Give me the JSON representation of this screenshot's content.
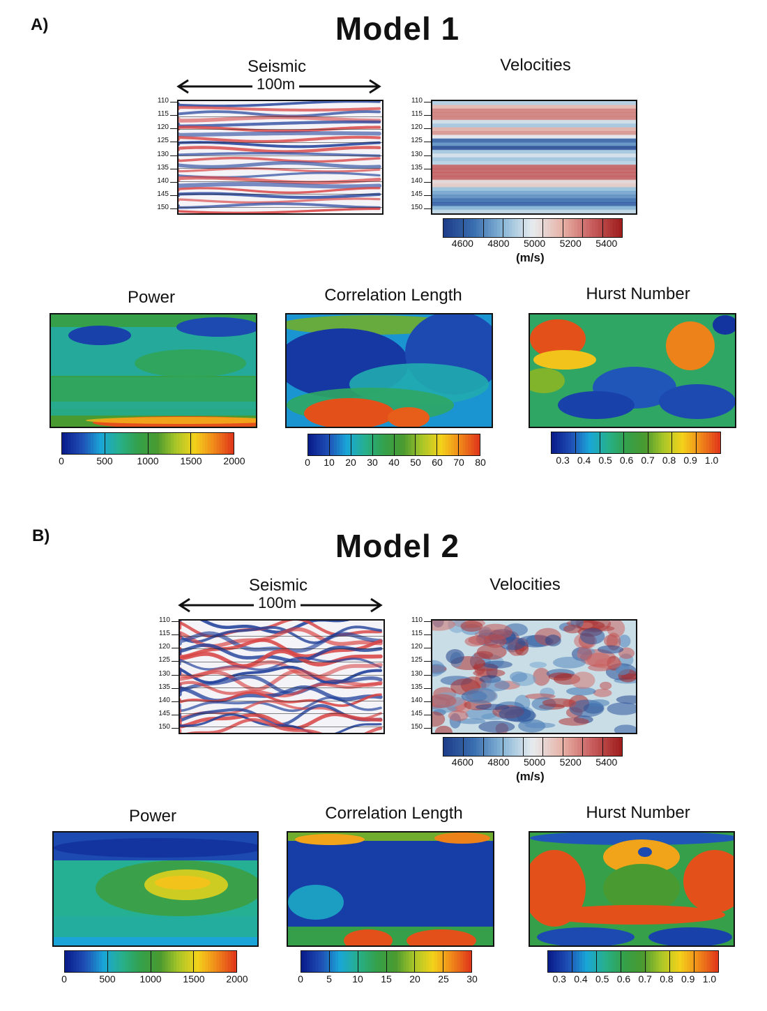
{
  "panels": [
    {
      "letter": "A)",
      "title": "Model 1",
      "seismic": {
        "title": "Seismic",
        "scale_label": "100m",
        "depth_ticks": [
          "110",
          "115",
          "120",
          "125",
          "130",
          "135",
          "140",
          "145",
          "150"
        ]
      },
      "velocities": {
        "title": "Velocities",
        "depth_ticks": [
          "110",
          "115",
          "120",
          "125",
          "130",
          "135",
          "140",
          "145",
          "150"
        ],
        "colorbar_labels": [
          "4600",
          "4800",
          "5000",
          "5200",
          "5400"
        ],
        "unit": "(m/s)"
      },
      "power": {
        "title": "Power",
        "colorbar_labels": [
          "0",
          "500",
          "1000",
          "1500",
          "2000"
        ]
      },
      "correlation": {
        "title": "Correlation Length",
        "colorbar_labels": [
          "0",
          "10",
          "20",
          "30",
          "40",
          "50",
          "60",
          "70",
          "80"
        ]
      },
      "hurst": {
        "title": "Hurst Number",
        "colorbar_labels": [
          "0.3",
          "0.4",
          "0.5",
          "0.6",
          "0.7",
          "0.8",
          "0.9",
          "1.0"
        ]
      }
    },
    {
      "letter": "B)",
      "title": "Model 2",
      "seismic": {
        "title": "Seismic",
        "scale_label": "100m",
        "depth_ticks": [
          "110",
          "115",
          "120",
          "125",
          "130",
          "135",
          "140",
          "145",
          "150"
        ]
      },
      "velocities": {
        "title": "Velocities",
        "depth_ticks": [
          "110",
          "115",
          "120",
          "125",
          "130",
          "135",
          "140",
          "145",
          "150"
        ],
        "colorbar_labels": [
          "4600",
          "4800",
          "5000",
          "5200",
          "5400"
        ],
        "unit": "(m/s)"
      },
      "power": {
        "title": "Power",
        "colorbar_labels": [
          "0",
          "500",
          "1000",
          "1500",
          "2000"
        ]
      },
      "correlation": {
        "title": "Correlation Length",
        "colorbar_labels": [
          "0",
          "5",
          "10",
          "15",
          "20",
          "25",
          "30"
        ]
      },
      "hurst": {
        "title": "Hurst Number",
        "colorbar_labels": [
          "0.3",
          "0.4",
          "0.5",
          "0.6",
          "0.7",
          "0.8",
          "0.9",
          "1.0"
        ]
      }
    }
  ],
  "colors": {
    "jet": [
      "#0a1e8c",
      "#1f4fb5",
      "#1aa6d8",
      "#27b08a",
      "#34a04a",
      "#4a9a30",
      "#a9c628",
      "#f3d21b",
      "#f08a1a",
      "#e03a1a"
    ],
    "seismic_pos": "#d94545",
    "seismic_neg": "#1f3f9a",
    "vel_scale": [
      "#1f3f8a",
      "#3a6fb0",
      "#8ab8d8",
      "#e8ecef",
      "#e7b3a8",
      "#c96060",
      "#a01f1f"
    ]
  }
}
